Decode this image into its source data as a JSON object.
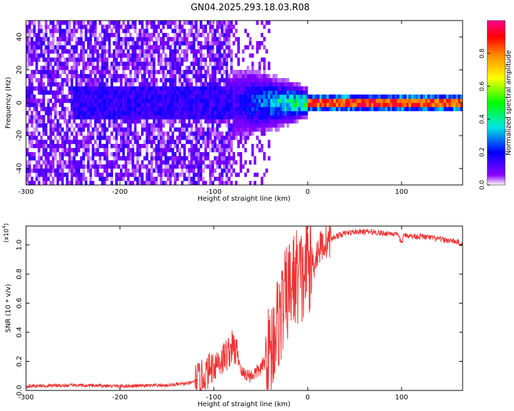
{
  "title": "GN04.2025.293.18.03.R08",
  "chart_data": [
    {
      "type": "heatmap",
      "xlabel": "Height of straight line (km)",
      "ylabel": "Frequency (Hz)",
      "xlim": [
        -300,
        165
      ],
      "ylim": [
        -50,
        50
      ],
      "xticks": [
        -300,
        -200,
        -100,
        0,
        100
      ],
      "yticks": [
        -40,
        -20,
        0,
        20,
        40
      ],
      "grid": false,
      "colorbar": {
        "label": "Normalized spectral amplitude",
        "range": [
          0,
          1
        ],
        "ticks": [
          "0.0",
          "0.2",
          "0.4",
          "0.6",
          "0.8"
        ],
        "colormap": [
          "#ffffff",
          "#7a00ff",
          "#0000ff",
          "#00e6e6",
          "#00ff00",
          "#ffff00",
          "#ff8000",
          "#ff0000",
          "#ff00a0"
        ]
      },
      "description_values": {
        "noise_region_x": [
          -300,
          -80
        ],
        "signal_center_frequency": 0,
        "strong_signal_x": [
          0,
          165
        ]
      }
    },
    {
      "type": "line",
      "xlabel": "Height of straight line (km)",
      "ylabel": "SNR (10 * v/v)",
      "y_scale_label": "(x10",
      "y_scale_exponent": "4",
      "xlim": [
        -300,
        165
      ],
      "ylim": [
        0,
        1.13
      ],
      "xticks": [
        -300,
        -200,
        -100,
        0,
        100
      ],
      "yticks": [
        "0.0",
        "0.2",
        "0.4",
        "0.6",
        "0.8",
        "1.0"
      ],
      "color": "#ee3333",
      "series": [
        {
          "name": "SNR",
          "x": [
            -300,
            -250,
            -200,
            -150,
            -125,
            -110,
            -100,
            -90,
            -80,
            -75,
            -70,
            -60,
            -50,
            -40,
            -35,
            -30,
            -25,
            -20,
            -15,
            -10,
            -5,
            0,
            5,
            10,
            15,
            20,
            30,
            40,
            50,
            60,
            70,
            80,
            90,
            97,
            100,
            102,
            105,
            110,
            120,
            130,
            140,
            150,
            160,
            165
          ],
          "values": [
            0.03,
            0.035,
            0.03,
            0.035,
            0.05,
            0.1,
            0.18,
            0.22,
            0.3,
            0.25,
            0.12,
            0.1,
            0.15,
            0.25,
            0.4,
            0.5,
            0.6,
            0.7,
            0.75,
            0.8,
            0.75,
            0.9,
            0.85,
            0.95,
            1.0,
            1.02,
            1.06,
            1.08,
            1.09,
            1.09,
            1.09,
            1.08,
            1.08,
            1.06,
            1.01,
            1.06,
            1.07,
            1.06,
            1.06,
            1.05,
            1.04,
            1.03,
            1.02,
            1.0
          ]
        }
      ]
    }
  ]
}
